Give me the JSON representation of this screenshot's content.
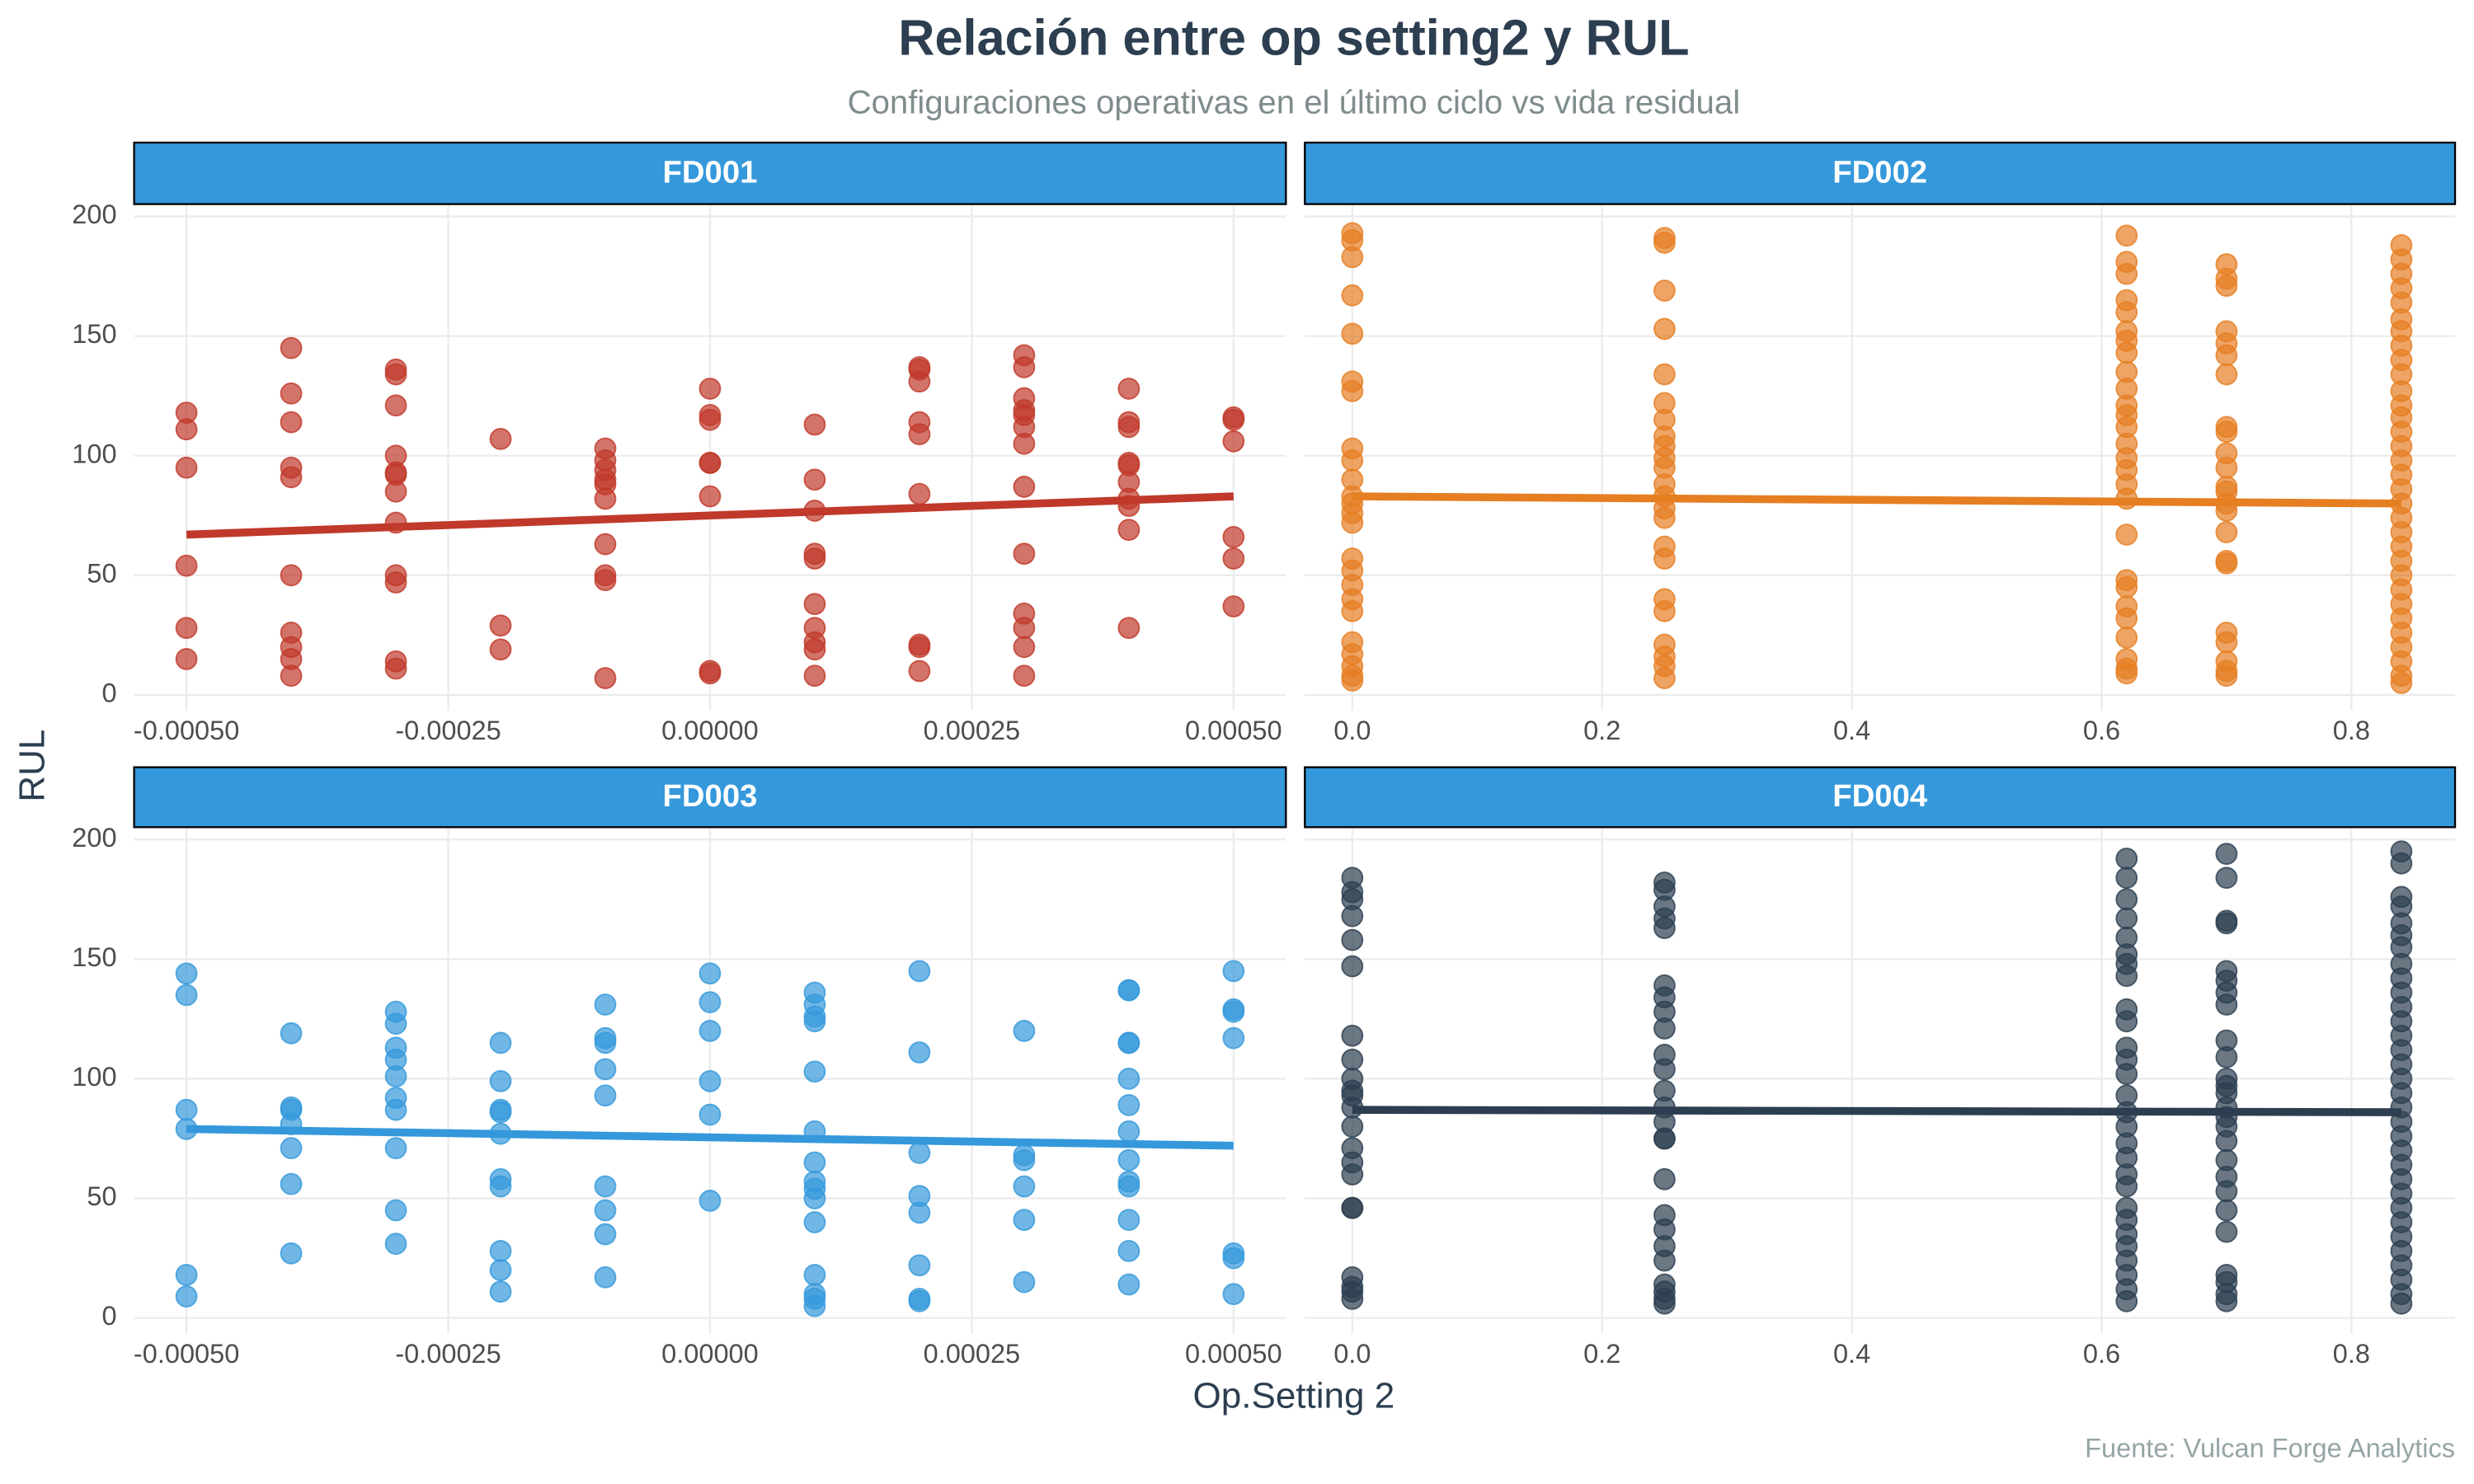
{
  "title": "Relación entre op setting2 y RUL",
  "subtitle": "Configuraciones operativas en el último ciclo vs vida residual",
  "x_label": "Op.Setting 2",
  "y_label": "RUL",
  "caption": "Fuente: Vulcan Forge Analytics",
  "chart_data": [
    {
      "type": "scatter",
      "title": "FD001",
      "color": "#c0392b",
      "x": [
        -0.0005,
        -0.0005,
        -0.0005,
        -0.0005,
        -0.0005,
        -0.0005,
        -0.0004,
        -0.0004,
        -0.0004,
        -0.0004,
        -0.0004,
        -0.0004,
        -0.0004,
        -0.0004,
        -0.0004,
        -0.0004,
        -0.0003,
        -0.0003,
        -0.0003,
        -0.0003,
        -0.0003,
        -0.0003,
        -0.0003,
        -0.0003,
        -0.0003,
        -0.0003,
        -0.0003,
        -0.0003,
        -0.0002,
        -0.0002,
        -0.0002,
        -0.0001,
        -0.0001,
        -0.0001,
        -0.0001,
        -0.0001,
        -0.0001,
        -0.0001,
        -0.0001,
        -0.0001,
        -0.0001,
        0,
        0,
        0,
        0,
        0,
        0,
        0,
        0,
        0.0001,
        0.0001,
        0.0001,
        0.0001,
        0.0001,
        0.0001,
        0.0001,
        0.0001,
        0.0001,
        0.0001,
        0.0002,
        0.0002,
        0.0002,
        0.0002,
        0.0002,
        0.0002,
        0.0002,
        0.0002,
        0.0002,
        0.0003,
        0.0003,
        0.0003,
        0.0003,
        0.0003,
        0.0003,
        0.0003,
        0.0003,
        0.0003,
        0.0003,
        0.0003,
        0.0003,
        0.0003,
        0.0004,
        0.0004,
        0.0004,
        0.0004,
        0.0004,
        0.0004,
        0.0004,
        0.0004,
        0.0004,
        0.0004,
        0.0005,
        0.0005,
        0.0005,
        0.0005,
        0.0005,
        0.0005
      ],
      "values": [
        118,
        111,
        95,
        54,
        28,
        15,
        145,
        126,
        114,
        95,
        91,
        50,
        26,
        20,
        15,
        8,
        136,
        134,
        121,
        100,
        93,
        92,
        85,
        72,
        50,
        47,
        14,
        11,
        107,
        29,
        19,
        103,
        98,
        94,
        90,
        88,
        82,
        63,
        50,
        48,
        7,
        128,
        117,
        115,
        97,
        97,
        83,
        10,
        9,
        113,
        90,
        77,
        59,
        57,
        38,
        28,
        22,
        19,
        8,
        137,
        136,
        131,
        114,
        109,
        84,
        21,
        20,
        10,
        142,
        137,
        124,
        119,
        117,
        112,
        105,
        87,
        59,
        34,
        28,
        20,
        8,
        128,
        114,
        112,
        97,
        96,
        89,
        82,
        79,
        69,
        28,
        116,
        115,
        106,
        66,
        57,
        37
      ],
      "trend": {
        "x": [
          -0.0005,
          0.0005
        ],
        "values": [
          67,
          83
        ]
      },
      "xlim": [
        -0.00055,
        0.00055
      ],
      "ylim": [
        -6.5,
        204.5
      ],
      "xticks": [
        {
          "value": -0.0005,
          "label": "-0.00050"
        },
        -0.00025,
        {
          "value": 0,
          "label": "0.00000"
        },
        0.00025,
        {
          "value": 0.0005,
          "label": "0.00050"
        }
      ],
      "yticks": [
        0,
        50,
        100,
        150,
        200
      ],
      "grid": true
    },
    {
      "type": "scatter",
      "title": "FD002",
      "color": "#e67e22",
      "x": [
        0,
        0,
        0,
        0,
        0,
        0,
        0,
        0,
        0,
        0,
        0,
        0,
        0,
        0,
        0,
        0,
        0,
        0,
        0,
        0,
        0,
        0,
        0,
        0,
        0.25,
        0.25,
        0.25,
        0.25,
        0.25,
        0.25,
        0.25,
        0.25,
        0.25,
        0.25,
        0.25,
        0.25,
        0.25,
        0.25,
        0.25,
        0.25,
        0.25,
        0.25,
        0.25,
        0.25,
        0.25,
        0.25,
        0.25,
        0.62,
        0.62,
        0.62,
        0.62,
        0.62,
        0.62,
        0.62,
        0.62,
        0.62,
        0.62,
        0.62,
        0.62,
        0.62,
        0.62,
        0.62,
        0.62,
        0.62,
        0.62,
        0.62,
        0.62,
        0.62,
        0.62,
        0.62,
        0.62,
        0.62,
        0.62,
        0.62,
        0.7,
        0.7,
        0.7,
        0.7,
        0.7,
        0.7,
        0.7,
        0.7,
        0.7,
        0.7,
        0.7,
        0.7,
        0.7,
        0.7,
        0.7,
        0.7,
        0.7,
        0.7,
        0.7,
        0.7,
        0.7,
        0.7,
        0.7,
        0.84,
        0.84,
        0.84,
        0.84,
        0.84,
        0.84,
        0.84,
        0.84,
        0.84,
        0.84,
        0.84,
        0.84,
        0.84,
        0.84,
        0.84,
        0.84,
        0.84,
        0.84,
        0.84,
        0.84,
        0.84,
        0.84,
        0.84,
        0.84,
        0.84,
        0.84,
        0.84,
        0.84,
        0.84,
        0.84,
        0.84,
        0.84
      ],
      "values": [
        193,
        190,
        183,
        167,
        151,
        131,
        127,
        103,
        98,
        90,
        83,
        80,
        76,
        72,
        57,
        52,
        46,
        40,
        35,
        22,
        17,
        12,
        8,
        6,
        191,
        189,
        169,
        153,
        134,
        122,
        115,
        108,
        104,
        99,
        95,
        88,
        83,
        78,
        74,
        62,
        57,
        40,
        35,
        21,
        16,
        12,
        7,
        192,
        181,
        176,
        165,
        160,
        152,
        148,
        143,
        135,
        128,
        121,
        117,
        112,
        105,
        99,
        94,
        88,
        82,
        67,
        48,
        45,
        37,
        32,
        24,
        15,
        11,
        9,
        180,
        174,
        171,
        152,
        147,
        142,
        134,
        112,
        110,
        101,
        95,
        87,
        85,
        80,
        77,
        68,
        56,
        55,
        26,
        22,
        14,
        10,
        8,
        188,
        182,
        176,
        170,
        164,
        157,
        152,
        146,
        140,
        134,
        127,
        121,
        116,
        110,
        104,
        98,
        92,
        86,
        80,
        74,
        68,
        62,
        56,
        50,
        44,
        38,
        32,
        26,
        20,
        14,
        8,
        5
      ],
      "trend": {
        "x": [
          0,
          0.84
        ],
        "values": [
          83,
          80
        ]
      },
      "xlim": [
        -0.038,
        0.883
      ],
      "ylim": [
        -6.5,
        204.5
      ],
      "xticks": [
        {
          "value": 0,
          "label": "0.0"
        },
        0.2,
        0.4,
        0.6,
        0.8
      ],
      "yticks": [
        0,
        50,
        100,
        150,
        200
      ],
      "grid": true
    },
    {
      "type": "scatter",
      "title": "FD003",
      "color": "#3498db",
      "x": [
        -0.0005,
        -0.0005,
        -0.0005,
        -0.0005,
        -0.0005,
        -0.0005,
        -0.0004,
        -0.0004,
        -0.0004,
        -0.0004,
        -0.0004,
        -0.0004,
        -0.0004,
        -0.0003,
        -0.0003,
        -0.0003,
        -0.0003,
        -0.0003,
        -0.0003,
        -0.0003,
        -0.0003,
        -0.0003,
        -0.0003,
        -0.0002,
        -0.0002,
        -0.0002,
        -0.0002,
        -0.0002,
        -0.0002,
        -0.0002,
        -0.0002,
        -0.0002,
        -0.0002,
        -0.0001,
        -0.0001,
        -0.0001,
        -0.0001,
        -0.0001,
        -0.0001,
        -0.0001,
        -0.0001,
        -0.0001,
        0,
        0,
        0,
        0,
        0,
        0,
        0.0001,
        0.0001,
        0.0001,
        0.0001,
        0.0001,
        0.0001,
        0.0001,
        0.0001,
        0.0001,
        0.0001,
        0.0001,
        0.0001,
        0.0001,
        0.0001,
        0.0001,
        0.0002,
        0.0002,
        0.0002,
        0.0002,
        0.0002,
        0.0002,
        0.0002,
        0.0002,
        0.0003,
        0.0003,
        0.0003,
        0.0003,
        0.0003,
        0.0003,
        0.0004,
        0.0004,
        0.0004,
        0.0004,
        0.0004,
        0.0004,
        0.0004,
        0.0004,
        0.0004,
        0.0004,
        0.0004,
        0.0004,
        0.0004,
        0.0005,
        0.0005,
        0.0005,
        0.0005,
        0.0005,
        0.0005,
        0.0005
      ],
      "values": [
        144,
        135,
        87,
        79,
        18,
        9,
        119,
        88,
        87,
        81,
        71,
        56,
        27,
        128,
        123,
        113,
        108,
        101,
        92,
        87,
        71,
        45,
        31,
        115,
        99,
        87,
        86,
        77,
        58,
        55,
        28,
        20,
        11,
        131,
        117,
        115,
        104,
        93,
        55,
        45,
        35,
        17,
        144,
        132,
        120,
        99,
        85,
        49,
        136,
        131,
        126,
        124,
        103,
        78,
        65,
        57,
        54,
        50,
        40,
        18,
        10,
        8,
        5,
        145,
        111,
        69,
        51,
        44,
        22,
        8,
        7,
        120,
        68,
        66,
        55,
        41,
        15,
        137,
        137,
        115,
        115,
        100,
        89,
        78,
        66,
        57,
        55,
        41,
        28,
        14,
        145,
        129,
        128,
        117,
        27,
        25,
        10
      ],
      "trend": {
        "x": [
          -0.0005,
          0.0005
        ],
        "values": [
          79,
          72
        ]
      },
      "xlim": [
        -0.00055,
        0.00055
      ],
      "ylim": [
        -6.5,
        204.5
      ],
      "xticks": [
        {
          "value": -0.0005,
          "label": "-0.00050"
        },
        -0.00025,
        {
          "value": 0,
          "label": "0.00000"
        },
        0.00025,
        {
          "value": 0.0005,
          "label": "0.00050"
        }
      ],
      "yticks": [
        0,
        50,
        100,
        150,
        200
      ],
      "grid": true
    },
    {
      "type": "scatter",
      "title": "FD004",
      "color": "#2c3e50",
      "x": [
        0,
        0,
        0,
        0,
        0,
        0,
        0,
        0,
        0,
        0,
        0,
        0,
        0,
        0,
        0,
        0,
        0,
        0,
        0,
        0,
        0,
        0,
        0.25,
        0.25,
        0.25,
        0.25,
        0.25,
        0.25,
        0.25,
        0.25,
        0.25,
        0.25,
        0.25,
        0.25,
        0.25,
        0.25,
        0.25,
        0.25,
        0.25,
        0.25,
        0.25,
        0.25,
        0.25,
        0.25,
        0.25,
        0.25,
        0.25,
        0.62,
        0.62,
        0.62,
        0.62,
        0.62,
        0.62,
        0.62,
        0.62,
        0.62,
        0.62,
        0.62,
        0.62,
        0.62,
        0.62,
        0.62,
        0.62,
        0.62,
        0.62,
        0.62,
        0.62,
        0.62,
        0.62,
        0.62,
        0.62,
        0.62,
        0.62,
        0.62,
        0.62,
        0.7,
        0.7,
        0.7,
        0.7,
        0.7,
        0.7,
        0.7,
        0.7,
        0.7,
        0.7,
        0.7,
        0.7,
        0.7,
        0.7,
        0.7,
        0.7,
        0.7,
        0.7,
        0.7,
        0.7,
        0.7,
        0.7,
        0.7,
        0.7,
        0.7,
        0.7,
        0.84,
        0.84,
        0.84,
        0.84,
        0.84,
        0.84,
        0.84,
        0.84,
        0.84,
        0.84,
        0.84,
        0.84,
        0.84,
        0.84,
        0.84,
        0.84,
        0.84,
        0.84,
        0.84,
        0.84,
        0.84,
        0.84,
        0.84,
        0.84,
        0.84,
        0.84,
        0.84,
        0.84,
        0.84,
        0.84,
        0.84,
        0.84
      ],
      "values": [
        184,
        178,
        175,
        168,
        158,
        147,
        118,
        108,
        100,
        95,
        93,
        88,
        80,
        71,
        65,
        60,
        46,
        46,
        17,
        13,
        11,
        8,
        182,
        179,
        172,
        167,
        163,
        139,
        134,
        128,
        121,
        110,
        104,
        95,
        88,
        82,
        75,
        75,
        58,
        43,
        37,
        30,
        24,
        14,
        11,
        8,
        6,
        192,
        184,
        175,
        167,
        159,
        152,
        148,
        143,
        129,
        124,
        113,
        108,
        102,
        93,
        86,
        80,
        73,
        67,
        60,
        55,
        46,
        41,
        35,
        30,
        24,
        18,
        12,
        7,
        194,
        184,
        166,
        165,
        145,
        141,
        136,
        131,
        116,
        109,
        100,
        97,
        94,
        88,
        84,
        80,
        74,
        66,
        59,
        53,
        45,
        36,
        18,
        15,
        10,
        7,
        195,
        190,
        176,
        172,
        165,
        160,
        155,
        148,
        142,
        136,
        130,
        124,
        118,
        112,
        106,
        100,
        94,
        88,
        82,
        76,
        70,
        64,
        58,
        52,
        46,
        40,
        34,
        28,
        22,
        16,
        10,
        6
      ],
      "trend": {
        "x": [
          0,
          0.84
        ],
        "values": [
          87,
          86
        ]
      },
      "xlim": [
        -0.038,
        0.883
      ],
      "ylim": [
        -6.5,
        204.5
      ],
      "xticks": [
        {
          "value": 0,
          "label": "0.0"
        },
        0.2,
        0.4,
        0.6,
        0.8
      ],
      "yticks": [
        0,
        50,
        100,
        150,
        200
      ],
      "grid": true
    }
  ]
}
